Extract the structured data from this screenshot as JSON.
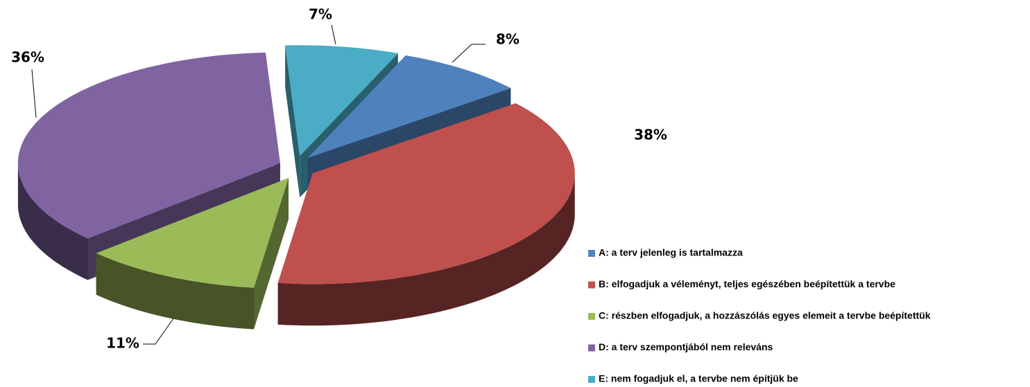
{
  "chart_data": {
    "type": "pie",
    "categories": [
      "A: a terv jelenleg is tartalmazza",
      "B: elfogadjuk a véleményt, teljes egészében beépítettük a tervbe",
      "C: részben elfogadjuk, a hozzászólás egyes elemeit a tervbe beépítettük",
      "D: a terv szempontjából nem releváns",
      "E: nem fogadjuk el, a tervbe nem építjük be"
    ],
    "values": [
      8,
      38,
      11,
      36,
      7
    ],
    "value_labels": [
      "8%",
      "38%",
      "11%",
      "36%",
      "7%"
    ],
    "colors": [
      "#4F81BD",
      "#C0504D",
      "#9BBB59",
      "#8064A2",
      "#4BACC6"
    ],
    "legend": "right"
  }
}
